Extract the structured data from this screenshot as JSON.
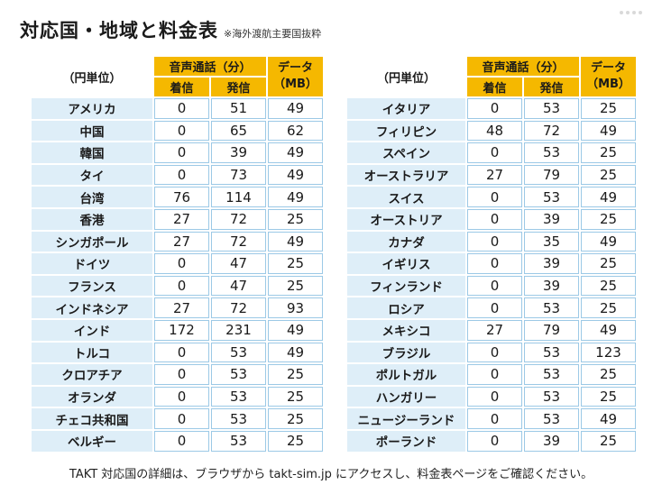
{
  "title": "対応国・地域と料金表",
  "subtitle": "※海外渡航主要国抜粋",
  "header": {
    "unit": "（円単位）",
    "voice": "音声通話（分）",
    "incoming": "着信",
    "outgoing": "発信",
    "data_line1": "データ",
    "data_line2": "（MB）"
  },
  "left_rows": [
    {
      "country": "アメリカ",
      "incoming": "0",
      "outgoing": "51",
      "data": "49"
    },
    {
      "country": "中国",
      "incoming": "0",
      "outgoing": "65",
      "data": "62"
    },
    {
      "country": "韓国",
      "incoming": "0",
      "outgoing": "39",
      "data": "49"
    },
    {
      "country": "タイ",
      "incoming": "0",
      "outgoing": "73",
      "data": "49"
    },
    {
      "country": "台湾",
      "incoming": "76",
      "outgoing": "114",
      "data": "49"
    },
    {
      "country": "香港",
      "incoming": "27",
      "outgoing": "72",
      "data": "25"
    },
    {
      "country": "シンガポール",
      "incoming": "27",
      "outgoing": "72",
      "data": "49"
    },
    {
      "country": "ドイツ",
      "incoming": "0",
      "outgoing": "47",
      "data": "25"
    },
    {
      "country": "フランス",
      "incoming": "0",
      "outgoing": "47",
      "data": "25"
    },
    {
      "country": "インドネシア",
      "incoming": "27",
      "outgoing": "72",
      "data": "93"
    },
    {
      "country": "インド",
      "incoming": "172",
      "outgoing": "231",
      "data": "49"
    },
    {
      "country": "トルコ",
      "incoming": "0",
      "outgoing": "53",
      "data": "49"
    },
    {
      "country": "クロアチア",
      "incoming": "0",
      "outgoing": "53",
      "data": "25"
    },
    {
      "country": "オランダ",
      "incoming": "0",
      "outgoing": "53",
      "data": "25"
    },
    {
      "country": "チェコ共和国",
      "incoming": "0",
      "outgoing": "53",
      "data": "25"
    },
    {
      "country": "ベルギー",
      "incoming": "0",
      "outgoing": "53",
      "data": "25"
    }
  ],
  "right_rows": [
    {
      "country": "イタリア",
      "incoming": "0",
      "outgoing": "53",
      "data": "25"
    },
    {
      "country": "フィリピン",
      "incoming": "48",
      "outgoing": "72",
      "data": "49"
    },
    {
      "country": "スペイン",
      "incoming": "0",
      "outgoing": "53",
      "data": "25"
    },
    {
      "country": "オーストラリア",
      "incoming": "27",
      "outgoing": "79",
      "data": "25"
    },
    {
      "country": "スイス",
      "incoming": "0",
      "outgoing": "53",
      "data": "49"
    },
    {
      "country": "オーストリア",
      "incoming": "0",
      "outgoing": "39",
      "data": "25"
    },
    {
      "country": "カナダ",
      "incoming": "0",
      "outgoing": "35",
      "data": "49"
    },
    {
      "country": "イギリス",
      "incoming": "0",
      "outgoing": "39",
      "data": "25"
    },
    {
      "country": "フィンランド",
      "incoming": "0",
      "outgoing": "39",
      "data": "25"
    },
    {
      "country": "ロシア",
      "incoming": "0",
      "outgoing": "53",
      "data": "25"
    },
    {
      "country": "メキシコ",
      "incoming": "27",
      "outgoing": "79",
      "data": "49"
    },
    {
      "country": "ブラジル",
      "incoming": "0",
      "outgoing": "53",
      "data": "123"
    },
    {
      "country": "ポルトガル",
      "incoming": "0",
      "outgoing": "53",
      "data": "25"
    },
    {
      "country": "ハンガリー",
      "incoming": "0",
      "outgoing": "53",
      "data": "25"
    },
    {
      "country": "ニュージーランド",
      "incoming": "0",
      "outgoing": "53",
      "data": "49"
    },
    {
      "country": "ポーランド",
      "incoming": "0",
      "outgoing": "39",
      "data": "25"
    }
  ],
  "footer": "TAKT 対応国の詳細は、ブラウザから takt-sim.jp にアクセスし、料金表ページをご確認ください。",
  "colors": {
    "header_bg": "#f5b800",
    "country_bg": "#deeef8",
    "cell_border": "#9cc9e6"
  }
}
